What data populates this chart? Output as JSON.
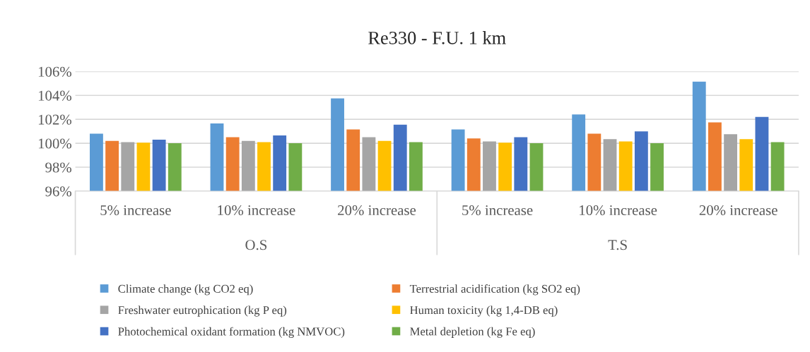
{
  "chart_data": {
    "type": "bar",
    "title": "Re330 - F.U. 1 km",
    "categories": [
      "5% increase",
      "10% increase",
      "20% increase",
      "5% increase",
      "10% increase",
      "20% increase"
    ],
    "annotations": [
      "O.S",
      "T.S"
    ],
    "series": [
      {
        "name": "Climate change (kg CO2 eq)",
        "color": "#5b9bd5",
        "values": [
          100.8,
          101.65,
          103.75,
          101.15,
          102.4,
          105.15
        ]
      },
      {
        "name": "Terrestrial acidification (kg SO2 eq)",
        "color": "#ed7d31",
        "values": [
          100.2,
          100.5,
          101.15,
          100.4,
          100.8,
          101.75
        ]
      },
      {
        "name": "Freshwater eutrophication (kg P eq)",
        "color": "#a5a5a5",
        "values": [
          100.1,
          100.2,
          100.5,
          100.15,
          100.35,
          100.75
        ]
      },
      {
        "name": "Human toxicity (kg 1,4-DB eq)",
        "color": "#ffc000",
        "values": [
          100.05,
          100.1,
          100.2,
          100.05,
          100.15,
          100.35
        ]
      },
      {
        "name": "Photochemical oxidant formation (kg NMVOC)",
        "color": "#4472c4",
        "values": [
          100.3,
          100.65,
          101.55,
          100.5,
          101.0,
          102.2
        ]
      },
      {
        "name": "Metal depletion (kg Fe eq)",
        "color": "#70ad47",
        "values": [
          100.0,
          100.0,
          100.1,
          100.0,
          100.0,
          100.1
        ]
      }
    ],
    "ylim": [
      96,
      106
    ],
    "yticks": [
      {
        "value": 96,
        "label": "96%"
      },
      {
        "value": 98,
        "label": "98%"
      },
      {
        "value": 100,
        "label": "100%"
      },
      {
        "value": 102,
        "label": "102%"
      },
      {
        "value": 104,
        "label": "104%"
      },
      {
        "value": 106,
        "label": "106%"
      }
    ],
    "grid": "y",
    "legend": "bottom"
  }
}
